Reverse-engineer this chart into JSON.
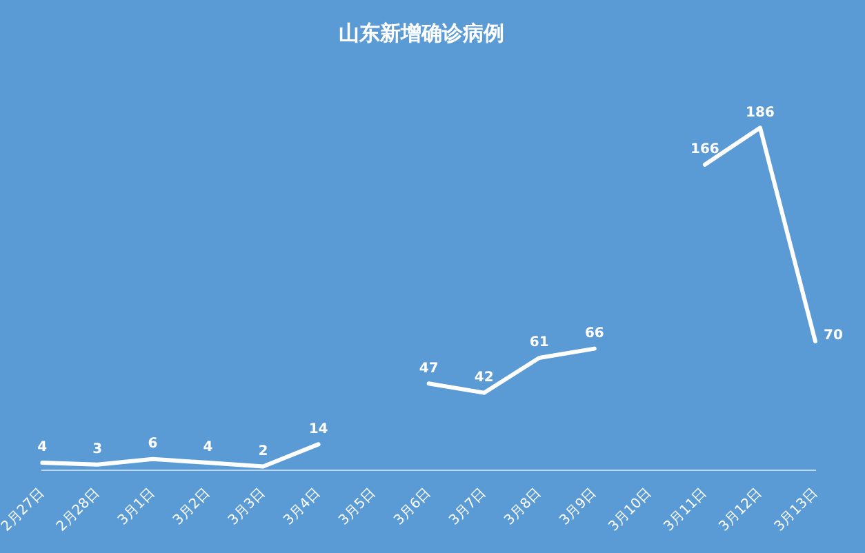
{
  "chart_data": {
    "type": "line",
    "title": "山东新增确诊病例",
    "categories": [
      "2月27日",
      "2月28日",
      "3月1日",
      "3月2日",
      "3月3日",
      "3月4日",
      "3月5日",
      "3月6日",
      "3月7日",
      "3月8日",
      "3月9日",
      "3月10日",
      "3月11日",
      "3月12日",
      "3月13日"
    ],
    "series": [
      {
        "color": "#ffffff",
        "values": [
          4,
          3,
          6,
          4,
          2,
          14,
          null,
          47,
          42,
          61,
          66,
          null,
          166,
          186,
          70
        ]
      }
    ],
    "data_labels": true,
    "grid": false,
    "legend": false,
    "tick_labels": "x",
    "marker": "none",
    "line_style": "solid"
  }
}
